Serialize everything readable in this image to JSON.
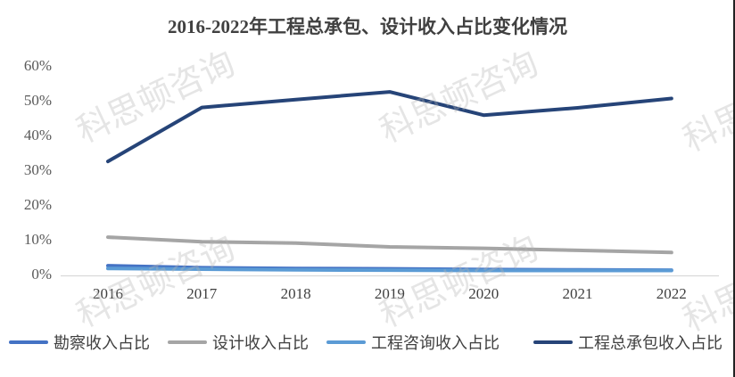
{
  "chart_data": {
    "type": "line",
    "title": "2016-2022年工程总承包、设计收入占比变化情况",
    "xlabel": "",
    "ylabel": "",
    "categories": [
      "2016",
      "2017",
      "2018",
      "2019",
      "2020",
      "2021",
      "2022"
    ],
    "yticks": [
      "0%",
      "10%",
      "20%",
      "30%",
      "40%",
      "50%",
      "60%"
    ],
    "ylim": [
      0,
      60
    ],
    "grid": false,
    "legend_position": "bottom",
    "series": [
      {
        "name": "勘察收入占比",
        "color": "#4472C4",
        "values": [
          2.8,
          2.2,
          2.0,
          1.9,
          1.7,
          1.6,
          1.5
        ]
      },
      {
        "name": "设计收入占比",
        "color": "#A5A5A5",
        "values": [
          11.0,
          9.7,
          9.3,
          8.2,
          7.8,
          7.2,
          6.6
        ]
      },
      {
        "name": "工程咨询收入占比",
        "color": "#5B9BD5",
        "values": [
          2.0,
          1.8,
          1.6,
          1.5,
          1.4,
          1.4,
          1.4
        ]
      },
      {
        "name": "工程总承包收入占比",
        "color": "#264478",
        "values": [
          32.8,
          48.3,
          50.6,
          52.8,
          46.1,
          48.2,
          50.9
        ]
      }
    ]
  },
  "watermark": "科思顿咨询"
}
